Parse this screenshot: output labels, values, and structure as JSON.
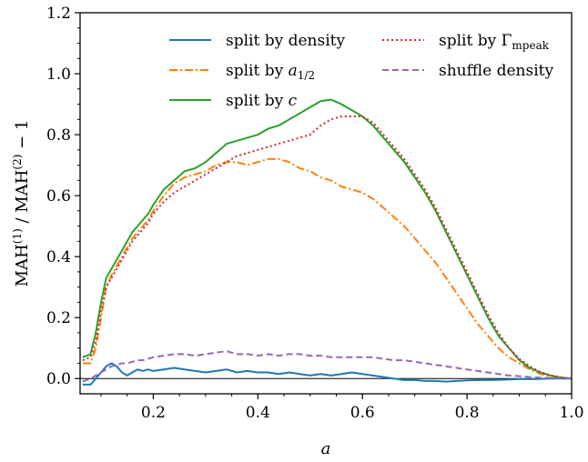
{
  "chart_data": {
    "type": "line",
    "xlabel": "a",
    "ylabel": "MAH(1) / MAH(2) − 1",
    "xlim": [
      0.06,
      1.0
    ],
    "ylim": [
      -0.05,
      1.2
    ],
    "xticks": [
      "0.2",
      "0.4",
      "0.6",
      "0.8",
      "1.0"
    ],
    "xtick_values": [
      0.2,
      0.4,
      0.6,
      0.8,
      1.0
    ],
    "yticks": [
      "0.0",
      "0.2",
      "0.4",
      "0.6",
      "0.8",
      "1.0",
      "1.2"
    ],
    "ytick_values": [
      0.0,
      0.2,
      0.4,
      0.6,
      0.8,
      1.0,
      1.2
    ],
    "reference_line_y": 0.0,
    "legend_placement": "top",
    "series": [
      {
        "name": "split by density",
        "legend_label": "split by density",
        "color": "#1f77b4",
        "dash": "",
        "x": [
          0.065,
          0.08,
          0.09,
          0.1,
          0.11,
          0.12,
          0.13,
          0.14,
          0.15,
          0.16,
          0.17,
          0.18,
          0.19,
          0.2,
          0.22,
          0.24,
          0.26,
          0.28,
          0.3,
          0.32,
          0.34,
          0.36,
          0.38,
          0.4,
          0.42,
          0.44,
          0.46,
          0.48,
          0.5,
          0.52,
          0.54,
          0.56,
          0.58,
          0.6,
          0.62,
          0.64,
          0.66,
          0.68,
          0.7,
          0.72,
          0.74,
          0.76,
          0.78,
          0.8,
          0.82,
          0.84,
          0.86,
          0.88,
          0.9,
          0.92,
          0.94,
          0.96,
          0.98,
          1.0
        ],
        "y": [
          -0.02,
          -0.02,
          0.0,
          0.02,
          0.04,
          0.05,
          0.04,
          0.02,
          0.01,
          0.02,
          0.03,
          0.025,
          0.03,
          0.025,
          0.03,
          0.035,
          0.03,
          0.025,
          0.02,
          0.025,
          0.03,
          0.02,
          0.025,
          0.02,
          0.02,
          0.015,
          0.02,
          0.015,
          0.01,
          0.015,
          0.01,
          0.015,
          0.02,
          0.015,
          0.01,
          0.005,
          0.0,
          -0.005,
          -0.005,
          -0.008,
          -0.008,
          -0.01,
          -0.008,
          -0.006,
          -0.005,
          -0.005,
          -0.004,
          -0.003,
          -0.002,
          -0.002,
          -0.001,
          0.0,
          0.0,
          0.0
        ]
      },
      {
        "name": "split by a_1/2",
        "legend_label": "split by a",
        "legend_sub": "1/2",
        "color": "#ff7f0e",
        "dash": "9,3,2,3",
        "x": [
          0.065,
          0.08,
          0.09,
          0.1,
          0.11,
          0.12,
          0.13,
          0.14,
          0.15,
          0.16,
          0.17,
          0.18,
          0.19,
          0.2,
          0.22,
          0.24,
          0.26,
          0.28,
          0.3,
          0.32,
          0.34,
          0.36,
          0.38,
          0.4,
          0.42,
          0.44,
          0.46,
          0.48,
          0.5,
          0.52,
          0.54,
          0.56,
          0.58,
          0.6,
          0.62,
          0.64,
          0.66,
          0.68,
          0.7,
          0.72,
          0.74,
          0.76,
          0.78,
          0.8,
          0.82,
          0.84,
          0.86,
          0.88,
          0.9,
          0.92,
          0.94,
          0.96,
          0.98,
          1.0
        ],
        "y": [
          0.05,
          0.05,
          0.1,
          0.2,
          0.3,
          0.34,
          0.37,
          0.4,
          0.43,
          0.46,
          0.48,
          0.5,
          0.52,
          0.55,
          0.6,
          0.64,
          0.66,
          0.67,
          0.68,
          0.7,
          0.71,
          0.71,
          0.7,
          0.71,
          0.72,
          0.72,
          0.71,
          0.69,
          0.68,
          0.66,
          0.65,
          0.63,
          0.62,
          0.61,
          0.59,
          0.56,
          0.53,
          0.5,
          0.46,
          0.42,
          0.38,
          0.33,
          0.28,
          0.23,
          0.18,
          0.14,
          0.1,
          0.07,
          0.05,
          0.03,
          0.015,
          0.008,
          0.003,
          0.0
        ]
      },
      {
        "name": "split by c",
        "legend_label": "split by c",
        "color": "#2ca02c",
        "dash": "",
        "x": [
          0.065,
          0.08,
          0.09,
          0.1,
          0.11,
          0.12,
          0.13,
          0.14,
          0.15,
          0.16,
          0.17,
          0.18,
          0.19,
          0.2,
          0.22,
          0.24,
          0.26,
          0.28,
          0.3,
          0.32,
          0.34,
          0.36,
          0.38,
          0.4,
          0.42,
          0.44,
          0.46,
          0.48,
          0.5,
          0.52,
          0.54,
          0.56,
          0.58,
          0.6,
          0.62,
          0.64,
          0.66,
          0.68,
          0.7,
          0.72,
          0.74,
          0.76,
          0.78,
          0.8,
          0.82,
          0.84,
          0.86,
          0.88,
          0.9,
          0.92,
          0.94,
          0.96,
          0.98,
          1.0
        ],
        "y": [
          0.07,
          0.08,
          0.15,
          0.25,
          0.33,
          0.36,
          0.39,
          0.42,
          0.45,
          0.48,
          0.5,
          0.52,
          0.54,
          0.57,
          0.62,
          0.65,
          0.68,
          0.69,
          0.71,
          0.74,
          0.77,
          0.78,
          0.79,
          0.8,
          0.82,
          0.83,
          0.85,
          0.87,
          0.89,
          0.91,
          0.915,
          0.9,
          0.88,
          0.86,
          0.83,
          0.79,
          0.75,
          0.71,
          0.66,
          0.61,
          0.55,
          0.48,
          0.41,
          0.34,
          0.27,
          0.2,
          0.14,
          0.1,
          0.06,
          0.035,
          0.02,
          0.01,
          0.003,
          0.0
        ]
      },
      {
        "name": "split by Γ_mpeak",
        "legend_label": "split by Γ",
        "legend_sub": "mpeak",
        "color": "#d62728",
        "dash": "2,3",
        "x": [
          0.065,
          0.08,
          0.09,
          0.1,
          0.11,
          0.12,
          0.13,
          0.14,
          0.15,
          0.16,
          0.17,
          0.18,
          0.19,
          0.2,
          0.22,
          0.24,
          0.26,
          0.28,
          0.3,
          0.32,
          0.34,
          0.36,
          0.38,
          0.4,
          0.42,
          0.44,
          0.46,
          0.48,
          0.5,
          0.52,
          0.54,
          0.56,
          0.58,
          0.6,
          0.62,
          0.64,
          0.66,
          0.68,
          0.7,
          0.72,
          0.74,
          0.76,
          0.78,
          0.8,
          0.82,
          0.84,
          0.86,
          0.88,
          0.9,
          0.92,
          0.94,
          0.96,
          0.98,
          1.0
        ],
        "y": [
          0.06,
          0.07,
          0.12,
          0.22,
          0.3,
          0.33,
          0.36,
          0.39,
          0.42,
          0.45,
          0.47,
          0.49,
          0.51,
          0.54,
          0.58,
          0.61,
          0.63,
          0.65,
          0.67,
          0.69,
          0.71,
          0.73,
          0.74,
          0.75,
          0.76,
          0.77,
          0.78,
          0.79,
          0.8,
          0.83,
          0.85,
          0.86,
          0.86,
          0.86,
          0.84,
          0.8,
          0.76,
          0.72,
          0.67,
          0.62,
          0.56,
          0.49,
          0.42,
          0.35,
          0.28,
          0.21,
          0.15,
          0.1,
          0.065,
          0.04,
          0.022,
          0.01,
          0.004,
          0.0
        ]
      },
      {
        "name": "shuffle density",
        "legend_label": "shuffle density",
        "color": "#9467bd",
        "dash": "7,4",
        "x": [
          0.065,
          0.08,
          0.09,
          0.1,
          0.11,
          0.12,
          0.13,
          0.14,
          0.15,
          0.16,
          0.17,
          0.18,
          0.19,
          0.2,
          0.22,
          0.24,
          0.26,
          0.28,
          0.3,
          0.32,
          0.34,
          0.36,
          0.38,
          0.4,
          0.42,
          0.44,
          0.46,
          0.48,
          0.5,
          0.52,
          0.54,
          0.56,
          0.58,
          0.6,
          0.62,
          0.64,
          0.66,
          0.68,
          0.7,
          0.72,
          0.74,
          0.76,
          0.78,
          0.8,
          0.82,
          0.84,
          0.86,
          0.88,
          0.9,
          0.92,
          0.94,
          0.96,
          0.98,
          1.0
        ],
        "y": [
          -0.01,
          0.0,
          0.01,
          0.02,
          0.03,
          0.04,
          0.045,
          0.05,
          0.05,
          0.055,
          0.06,
          0.06,
          0.065,
          0.07,
          0.075,
          0.08,
          0.08,
          0.075,
          0.08,
          0.085,
          0.09,
          0.08,
          0.08,
          0.075,
          0.08,
          0.075,
          0.08,
          0.08,
          0.075,
          0.075,
          0.07,
          0.07,
          0.07,
          0.07,
          0.07,
          0.065,
          0.06,
          0.06,
          0.055,
          0.05,
          0.045,
          0.04,
          0.035,
          0.03,
          0.025,
          0.02,
          0.015,
          0.01,
          0.008,
          0.005,
          0.003,
          0.002,
          0.001,
          0.0
        ]
      }
    ]
  }
}
